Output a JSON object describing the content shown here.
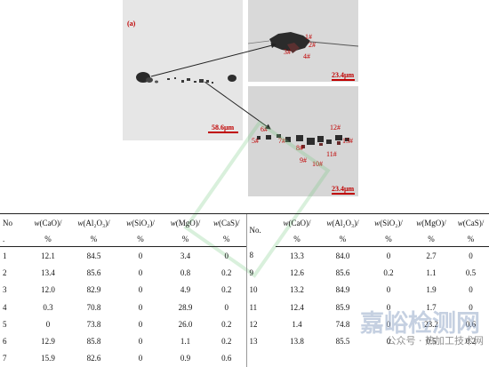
{
  "figure": {
    "panel_label": "(a)",
    "scale_main": "58.6μm",
    "scale_zoom_top": "23.4μm",
    "scale_zoom_bottom": "23.4μm",
    "tags_top": [
      "1#",
      "2#",
      "3#",
      "4#"
    ],
    "tags_bottom": [
      "5#",
      "6#",
      "7#",
      "8#",
      "9#",
      "10#",
      "11#",
      "12#",
      "13#"
    ]
  },
  "table": {
    "header_no": "No",
    "header_no_cont": ".",
    "header_no_right": "No.",
    "unit": "%",
    "columns": [
      {
        "w": "w",
        "name": "(CaO)/"
      },
      {
        "w": "w",
        "name": "(Al₂O₃)/"
      },
      {
        "w": "w",
        "name": "(SiO₂)/"
      },
      {
        "w": "w",
        "name": "(MgO)/"
      },
      {
        "w": "w",
        "name": "(CaS)/"
      }
    ],
    "rows_left": [
      [
        "1",
        "12.1",
        "84.5",
        "0",
        "3.4",
        "0"
      ],
      [
        "2",
        "13.4",
        "85.6",
        "0",
        "0.8",
        "0.2"
      ],
      [
        "3",
        "12.0",
        "82.9",
        "0",
        "4.9",
        "0.2"
      ],
      [
        "4",
        "0.3",
        "70.8",
        "0",
        "28.9",
        "0"
      ],
      [
        "5",
        "0",
        "73.8",
        "0",
        "26.0",
        "0.2"
      ],
      [
        "6",
        "12.9",
        "85.8",
        "0",
        "1.1",
        "0.2"
      ],
      [
        "7",
        "15.9",
        "82.6",
        "0",
        "0.9",
        "0.6"
      ]
    ],
    "rows_right": [
      [
        "8",
        "13.3",
        "84.0",
        "0",
        "2.7",
        "0"
      ],
      [
        "9",
        "12.6",
        "85.6",
        "0.2",
        "1.1",
        "0.5"
      ],
      [
        "10",
        "13.2",
        "84.9",
        "0",
        "1.9",
        "0"
      ],
      [
        "11",
        "12.4",
        "85.9",
        "0",
        "1.7",
        "0"
      ],
      [
        "12",
        "1.4",
        "74.8",
        "0",
        "23.2",
        "0.6"
      ],
      [
        "13",
        "13.8",
        "85.5",
        "0",
        "0.5",
        "0.2"
      ],
      [
        "",
        "",
        "",
        "",
        "",
        ""
      ]
    ]
  },
  "watermark": {
    "brand": "嘉峪检测网",
    "account": "公众号 · 热加工技术网"
  }
}
